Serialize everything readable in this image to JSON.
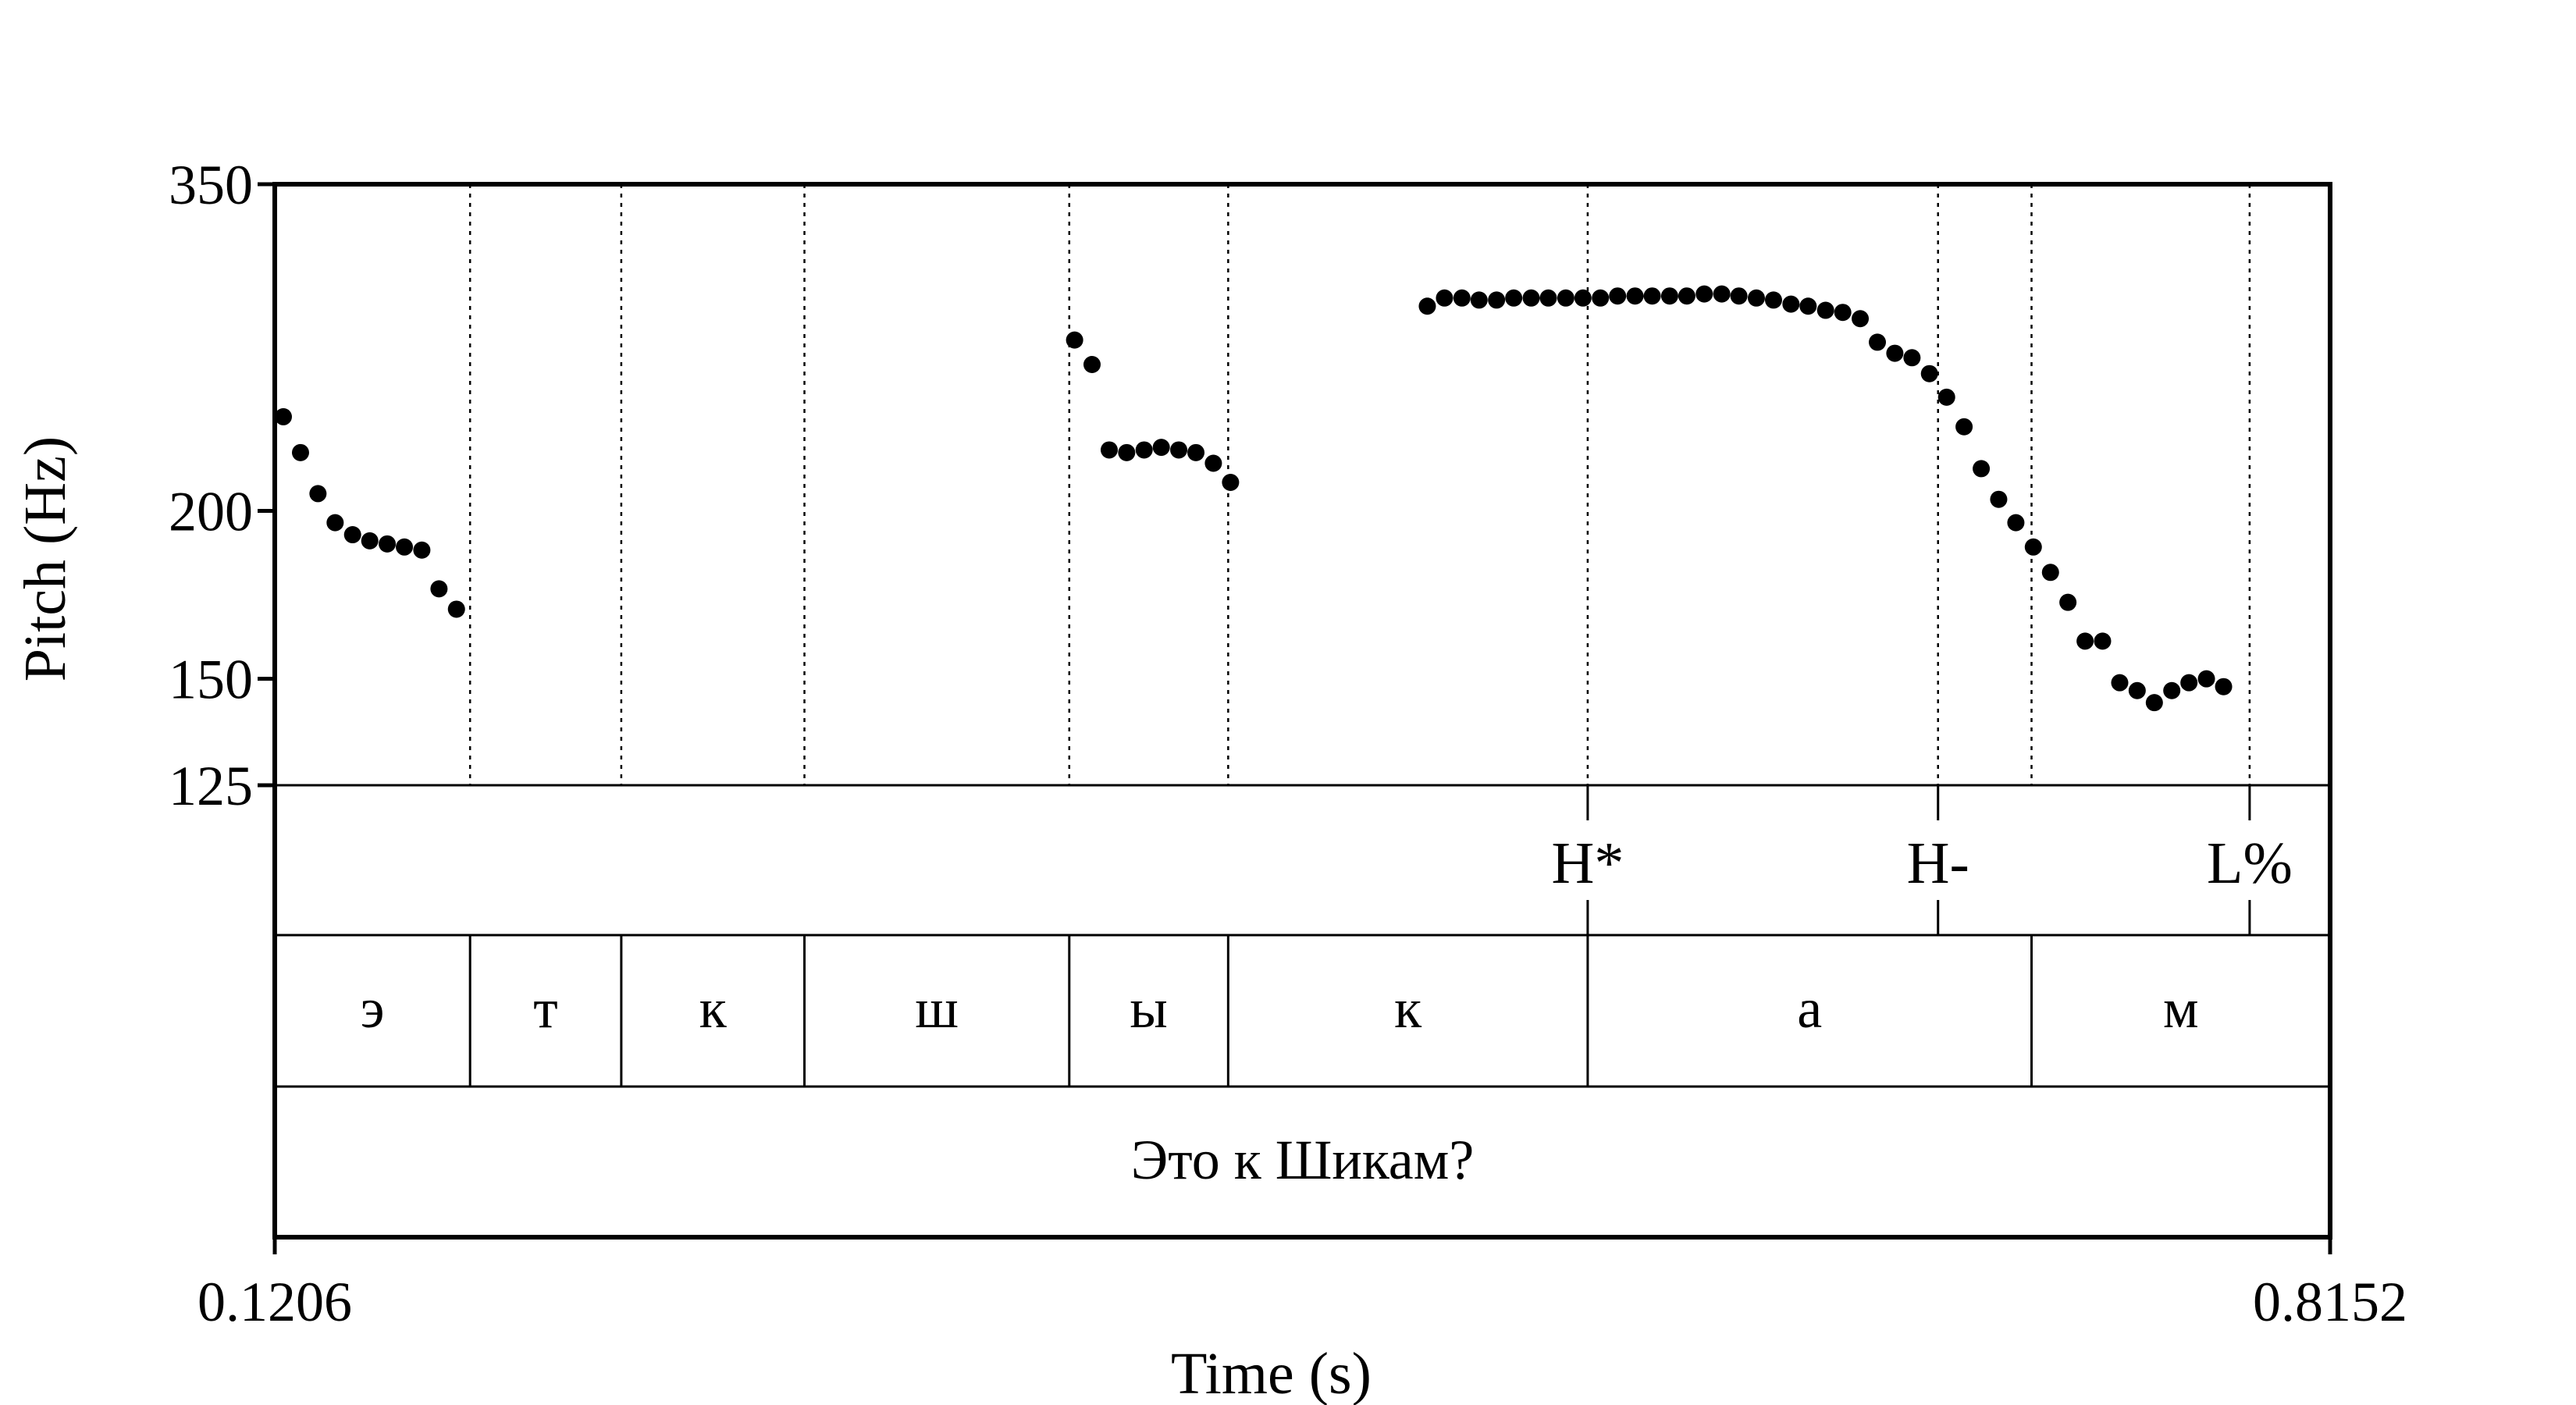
{
  "chart_data": {
    "type": "scatter",
    "title": "",
    "xlabel": "Time (s)",
    "ylabel": "Pitch (Hz)",
    "xlim": [
      0.1206,
      0.8152
    ],
    "ylim": [
      125,
      350
    ],
    "y_scale": "log",
    "x_tick_labels": [
      "0.1206",
      "0.8152"
    ],
    "y_tick_labels": [
      "350",
      "200",
      "150",
      "125"
    ],
    "y_ticks": [
      350,
      200,
      150,
      125
    ],
    "series": [
      {
        "points": [
          [
            0.1235,
            235
          ],
          [
            0.1293,
            221
          ],
          [
            0.1352,
            206
          ],
          [
            0.141,
            196
          ],
          [
            0.1469,
            192
          ],
          [
            0.1527,
            190
          ],
          [
            0.1586,
            189
          ],
          [
            0.1644,
            188
          ],
          [
            0.1703,
            187
          ],
          [
            0.1761,
            175
          ],
          [
            0.182,
            169
          ],
          [
            0.3909,
            268
          ],
          [
            0.3968,
            257
          ],
          [
            0.4026,
            222
          ],
          [
            0.4085,
            221
          ],
          [
            0.4144,
            222
          ],
          [
            0.4202,
            223
          ],
          [
            0.4261,
            222
          ],
          [
            0.4319,
            221
          ],
          [
            0.4378,
            217
          ],
          [
            0.4436,
            210
          ],
          [
            0.5101,
            284
          ],
          [
            0.5159,
            288
          ],
          [
            0.5218,
            288
          ],
          [
            0.5276,
            287
          ],
          [
            0.5335,
            287
          ],
          [
            0.5393,
            288
          ],
          [
            0.5452,
            288
          ],
          [
            0.551,
            288
          ],
          [
            0.5569,
            288
          ],
          [
            0.5627,
            288
          ],
          [
            0.5686,
            288
          ],
          [
            0.5744,
            289
          ],
          [
            0.5803,
            289
          ],
          [
            0.5861,
            289
          ],
          [
            0.592,
            289
          ],
          [
            0.5978,
            289
          ],
          [
            0.6037,
            290
          ],
          [
            0.6096,
            290
          ],
          [
            0.6154,
            289
          ],
          [
            0.6213,
            288
          ],
          [
            0.6271,
            287
          ],
          [
            0.633,
            285
          ],
          [
            0.6388,
            284
          ],
          [
            0.6447,
            282
          ],
          [
            0.6505,
            281
          ],
          [
            0.6564,
            278
          ],
          [
            0.6622,
            267
          ],
          [
            0.6681,
            262
          ],
          [
            0.6739,
            260
          ],
          [
            0.6798,
            253
          ],
          [
            0.6856,
            243
          ],
          [
            0.6915,
            231
          ],
          [
            0.6973,
            215
          ],
          [
            0.7032,
            204
          ],
          [
            0.709,
            196
          ],
          [
            0.7149,
            188
          ],
          [
            0.7207,
            180
          ],
          [
            0.7266,
            171
          ],
          [
            0.7324,
            160
          ],
          [
            0.7383,
            160
          ],
          [
            0.7441,
            149
          ],
          [
            0.75,
            147
          ],
          [
            0.7558,
            144
          ],
          [
            0.7617,
            147
          ],
          [
            0.7675,
            149
          ],
          [
            0.7734,
            150
          ],
          [
            0.7792,
            148
          ]
        ]
      }
    ],
    "boundaries_dotted": [
      0.1866,
      0.2377,
      0.2996,
      0.3891,
      0.4428,
      0.5643,
      0.6827
    ],
    "tiers": [
      {
        "name": "",
        "type": "point",
        "points": [
          {
            "time": 0.5643,
            "label": "H*"
          },
          {
            "time": 0.6827,
            "label": "H-"
          },
          {
            "time": 0.788,
            "label": "L%"
          }
        ]
      },
      {
        "name": "",
        "type": "interval",
        "intervals": [
          {
            "start": 0.1206,
            "end": 0.1866,
            "label": "э"
          },
          {
            "start": 0.1866,
            "end": 0.2377,
            "label": "т"
          },
          {
            "start": 0.2377,
            "end": 0.2996,
            "label": "к"
          },
          {
            "start": 0.2996,
            "end": 0.3891,
            "label": "ш"
          },
          {
            "start": 0.3891,
            "end": 0.4428,
            "label": "ы"
          },
          {
            "start": 0.4428,
            "end": 0.5643,
            "label": "к"
          },
          {
            "start": 0.5643,
            "end": 0.7143,
            "label": "а"
          },
          {
            "start": 0.7143,
            "end": 0.8152,
            "label": "м"
          }
        ]
      },
      {
        "name": "",
        "type": "interval",
        "intervals": [
          {
            "start": 0.1206,
            "end": 0.8152,
            "label": "Это к Шикам?"
          }
        ]
      }
    ]
  }
}
